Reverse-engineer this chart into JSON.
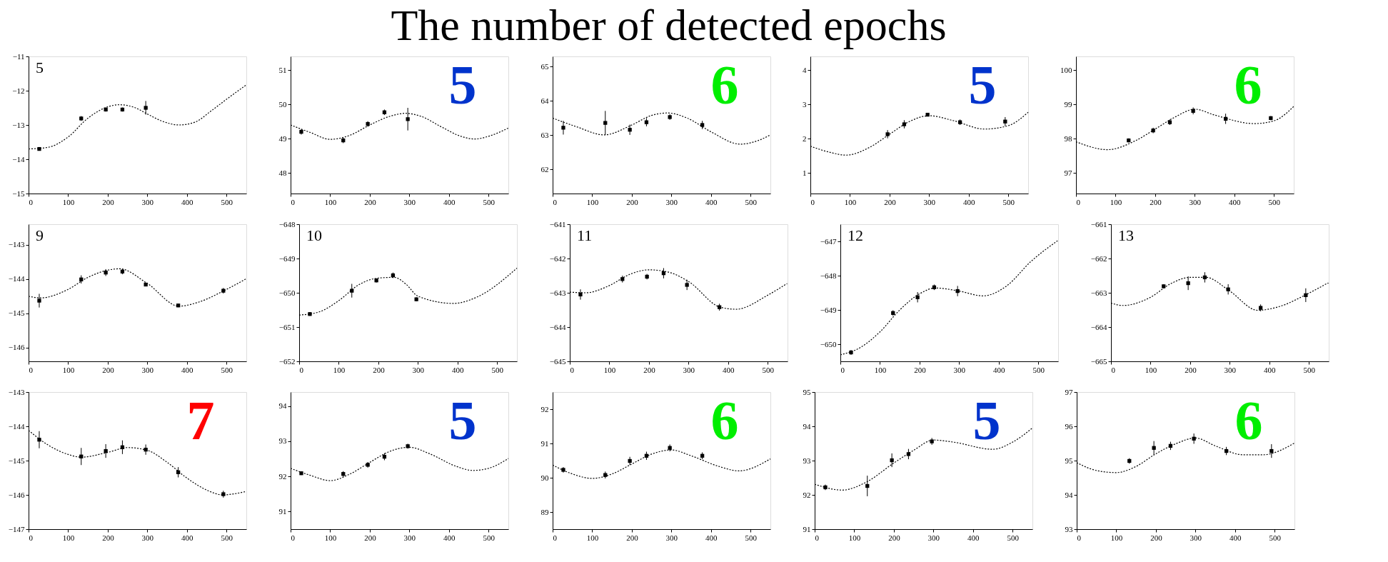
{
  "chart_data": [
    {
      "type": "scatter",
      "annotations": [
        "The number of detected epochs"
      ],
      "title": "5",
      "xlim": [
        0,
        550
      ],
      "xticks": [
        0,
        100,
        200,
        300,
        400,
        500
      ],
      "ylim": [
        -15,
        -11
      ],
      "yticks": [
        -15,
        -14,
        -13,
        -12,
        -11
      ],
      "grid": false,
      "series": [
        {
          "marker": "square",
          "color": "#000000",
          "x": [
            27,
            133,
            195,
            237,
            296
          ],
          "values": [
            -13.7,
            -12.81,
            -12.55,
            -12.55,
            -12.5
          ],
          "errors": [
            0.05,
            0.07,
            0.06,
            0.06,
            0.2
          ]
        },
        {
          "type": "line",
          "line_style": "dotted",
          "color": "#000000",
          "x": [
            0,
            50,
            100,
            150,
            200,
            230,
            270,
            300,
            340,
            380,
            420,
            460,
            500,
            550
          ],
          "values": [
            -13.7,
            -13.65,
            -13.35,
            -12.8,
            -12.47,
            -12.41,
            -12.5,
            -12.68,
            -12.9,
            -13.0,
            -12.92,
            -12.6,
            -12.25,
            -11.83
          ]
        }
      ]
    },
    {
      "type": "scatter",
      "annotations": [
        "5"
      ],
      "xlim": [
        0,
        550
      ],
      "xticks": [
        0,
        100,
        200,
        300,
        400,
        500
      ],
      "ylim": [
        47.4,
        51.4
      ],
      "yticks": [
        48,
        49,
        50,
        51
      ],
      "grid": false,
      "series": [
        {
          "marker": "square",
          "color": "#000000",
          "x": [
            27,
            133,
            195,
            237,
            296
          ],
          "values": [
            49.2,
            48.95,
            49.43,
            49.77,
            49.57
          ],
          "errors": [
            0.08,
            0.08,
            0.08,
            0.08,
            0.33
          ]
        },
        {
          "type": "line",
          "line_style": "dotted",
          "color": "#000000",
          "x": [
            0,
            50,
            100,
            150,
            200,
            250,
            290,
            330,
            380,
            430,
            465,
            500,
            550
          ],
          "values": [
            49.4,
            49.18,
            48.98,
            49.1,
            49.4,
            49.65,
            49.74,
            49.65,
            49.35,
            49.07,
            48.99,
            49.07,
            49.31
          ]
        }
      ]
    },
    {
      "type": "scatter",
      "annotations": [
        "6"
      ],
      "xlim": [
        0,
        550
      ],
      "xticks": [
        0,
        100,
        200,
        300,
        400,
        500
      ],
      "ylim": [
        61.3,
        65.3
      ],
      "yticks": [
        62,
        63,
        64,
        65
      ],
      "grid": false,
      "series": [
        {
          "marker": "square",
          "color": "#000000",
          "x": [
            27,
            133,
            195,
            237,
            296,
            378
          ],
          "values": [
            63.22,
            63.36,
            63.16,
            63.38,
            63.53,
            63.3
          ],
          "errors": [
            0.2,
            0.35,
            0.15,
            0.12,
            0.08,
            0.12
          ]
        },
        {
          "type": "line",
          "line_style": "dotted",
          "color": "#000000",
          "x": [
            0,
            60,
            130,
            200,
            250,
            290,
            340,
            400,
            474,
            520,
            550
          ],
          "values": [
            63.5,
            63.25,
            63.01,
            63.3,
            63.58,
            63.65,
            63.5,
            63.1,
            62.74,
            62.85,
            63.01
          ]
        }
      ]
    },
    {
      "type": "scatter",
      "annotations": [
        "5"
      ],
      "xlim": [
        0,
        550
      ],
      "xticks": [
        0,
        100,
        200,
        300,
        400,
        500
      ],
      "ylim": [
        0.4,
        4.4
      ],
      "yticks": [
        1,
        2,
        3,
        4
      ],
      "grid": false,
      "series": [
        {
          "marker": "square",
          "color": "#000000",
          "x": [
            195,
            237,
            296,
            378,
            492
          ],
          "values": [
            2.13,
            2.42,
            2.7,
            2.48,
            2.5
          ],
          "errors": [
            0.12,
            0.12,
            0.05,
            0.08,
            0.13
          ]
        },
        {
          "type": "line",
          "line_style": "dotted",
          "color": "#000000",
          "x": [
            0,
            50,
            90,
            150,
            200,
            250,
            300,
            360,
            440,
            500,
            550
          ],
          "values": [
            1.78,
            1.6,
            1.52,
            1.75,
            2.13,
            2.5,
            2.67,
            2.53,
            2.28,
            2.38,
            2.77
          ]
        }
      ]
    },
    {
      "type": "scatter",
      "annotations": [
        "6"
      ],
      "xlim": [
        0,
        550
      ],
      "xticks": [
        0,
        100,
        200,
        300,
        400,
        500
      ],
      "ylim": [
        96.4,
        100.4
      ],
      "yticks": [
        97,
        98,
        99,
        100
      ],
      "grid": false,
      "series": [
        {
          "marker": "square",
          "color": "#000000",
          "x": [
            133,
            195,
            237,
            296,
            378,
            492
          ],
          "values": [
            97.95,
            98.24,
            98.48,
            98.81,
            98.58,
            98.6
          ],
          "errors": [
            0.06,
            0.08,
            0.08,
            0.1,
            0.15,
            0.06
          ]
        },
        {
          "type": "line",
          "line_style": "dotted",
          "color": "#000000",
          "x": [
            0,
            80,
            150,
            200,
            250,
            300,
            350,
            450,
            500,
            550
          ],
          "values": [
            97.91,
            97.68,
            97.94,
            98.28,
            98.63,
            98.86,
            98.69,
            98.44,
            98.52,
            98.94
          ]
        }
      ]
    },
    {
      "type": "scatter",
      "title": "9",
      "xlim": [
        0,
        550
      ],
      "xticks": [
        0,
        100,
        200,
        300,
        400,
        500
      ],
      "ylim": [
        -146.4,
        -142.4
      ],
      "yticks": [
        -146,
        -145,
        -144,
        -143
      ],
      "grid": false,
      "series": [
        {
          "marker": "square",
          "color": "#000000",
          "x": [
            27,
            133,
            195,
            237,
            296,
            378,
            492
          ],
          "values": [
            -144.63,
            -144.01,
            -143.81,
            -143.78,
            -144.16,
            -144.77,
            -144.34
          ],
          "errors": [
            0.2,
            0.12,
            0.1,
            0.08,
            0.05,
            0.05,
            0.08
          ]
        },
        {
          "type": "line",
          "line_style": "dotted",
          "color": "#000000",
          "x": [
            0,
            30,
            100,
            150,
            200,
            230,
            300,
            380,
            430,
            500,
            550
          ],
          "values": [
            -144.5,
            -144.55,
            -144.3,
            -143.95,
            -143.74,
            -143.7,
            -144.13,
            -144.79,
            -144.67,
            -144.3,
            -143.99
          ]
        }
      ]
    },
    {
      "type": "scatter",
      "title": "10",
      "xlim": [
        0,
        550
      ],
      "xticks": [
        0,
        100,
        200,
        300,
        400,
        500
      ],
      "ylim": [
        -652,
        -648
      ],
      "yticks": [
        -652,
        -651,
        -650,
        -649,
        -648
      ],
      "grid": false,
      "series": [
        {
          "marker": "square",
          "color": "#000000",
          "x": [
            27,
            133,
            195,
            237,
            296
          ],
          "values": [
            -650.62,
            -649.94,
            -649.64,
            -649.49,
            -650.19
          ],
          "errors": [
            0.05,
            0.2,
            0.06,
            0.08,
            0.06
          ]
        },
        {
          "type": "line",
          "line_style": "dotted",
          "color": "#000000",
          "x": [
            0,
            50,
            100,
            150,
            200,
            240,
            270,
            300,
            390,
            450,
            550
          ],
          "values": [
            -650.65,
            -650.56,
            -650.23,
            -649.77,
            -649.57,
            -649.55,
            -649.75,
            -650.1,
            -650.31,
            -650.12,
            -649.28
          ]
        }
      ]
    },
    {
      "type": "scatter",
      "title": "11",
      "xlim": [
        0,
        550
      ],
      "xticks": [
        0,
        100,
        200,
        300,
        400,
        500
      ],
      "ylim": [
        -645,
        -641
      ],
      "yticks": [
        -645,
        -644,
        -643,
        -642,
        -641
      ],
      "grid": false,
      "series": [
        {
          "marker": "square",
          "color": "#000000",
          "x": [
            27,
            133,
            195,
            237,
            296,
            378
          ],
          "values": [
            -643.05,
            -642.6,
            -642.53,
            -642.43,
            -642.77,
            -643.42
          ],
          "errors": [
            0.15,
            0.1,
            0.08,
            0.15,
            0.15,
            0.1
          ]
        },
        {
          "type": "line",
          "line_style": "dotted",
          "color": "#000000",
          "x": [
            0,
            40,
            100,
            150,
            200,
            250,
            300,
            380,
            420,
            500,
            550
          ],
          "values": [
            -642.98,
            -643.0,
            -642.79,
            -642.47,
            -642.33,
            -642.4,
            -642.67,
            -643.42,
            -643.48,
            -643.07,
            -642.72
          ]
        }
      ]
    },
    {
      "type": "scatter",
      "title": "12",
      "xlim": [
        0,
        550
      ],
      "xticks": [
        0,
        100,
        200,
        300,
        400,
        500
      ],
      "ylim": [
        -650.5,
        -646.5
      ],
      "yticks": [
        -650,
        -649,
        -648,
        -647
      ],
      "grid": false,
      "series": [
        {
          "marker": "square",
          "color": "#000000",
          "x": [
            27,
            133,
            195,
            237,
            296
          ],
          "values": [
            -650.24,
            -649.09,
            -648.63,
            -648.34,
            -648.45
          ],
          "errors": [
            0.07,
            0.08,
            0.15,
            0.08,
            0.15
          ]
        },
        {
          "type": "line",
          "line_style": "dotted",
          "color": "#000000",
          "x": [
            0,
            50,
            100,
            150,
            200,
            240,
            300,
            360,
            420,
            480,
            550
          ],
          "values": [
            -650.31,
            -650.1,
            -649.64,
            -649.0,
            -648.53,
            -648.36,
            -648.45,
            -648.59,
            -648.3,
            -647.6,
            -646.97
          ]
        }
      ]
    },
    {
      "type": "scatter",
      "title": "13",
      "xlim": [
        0,
        550
      ],
      "xticks": [
        0,
        100,
        200,
        300,
        400,
        500
      ],
      "ylim": [
        -665,
        -661
      ],
      "yticks": [
        -665,
        -664,
        -663,
        -662,
        -661
      ],
      "grid": false,
      "series": [
        {
          "marker": "square",
          "color": "#000000",
          "x": [
            133,
            195,
            237,
            296,
            378,
            492
          ],
          "values": [
            -662.81,
            -662.72,
            -662.55,
            -662.9,
            -663.44,
            -663.07
          ],
          "errors": [
            0.06,
            0.2,
            0.15,
            0.15,
            0.1,
            0.2
          ]
        },
        {
          "type": "line",
          "line_style": "dotted",
          "color": "#000000",
          "x": [
            0,
            30,
            100,
            150,
            200,
            240,
            300,
            370,
            420,
            500,
            550
          ],
          "values": [
            -663.3,
            -663.37,
            -663.13,
            -662.74,
            -662.55,
            -662.55,
            -662.95,
            -663.51,
            -663.42,
            -663.01,
            -662.7
          ]
        }
      ]
    },
    {
      "type": "scatter",
      "annotations": [
        "7"
      ],
      "xlim": [
        0,
        550
      ],
      "xticks": [
        0,
        100,
        200,
        300,
        400,
        500
      ],
      "ylim": [
        -147,
        -143
      ],
      "yticks": [
        -147,
        -146,
        -145,
        -144,
        -143
      ],
      "grid": false,
      "series": [
        {
          "marker": "square",
          "color": "#000000",
          "x": [
            27,
            133,
            195,
            237,
            296,
            378,
            492
          ],
          "values": [
            -144.39,
            -144.88,
            -144.72,
            -144.61,
            -144.68,
            -145.34,
            -145.98
          ],
          "errors": [
            0.25,
            0.25,
            0.2,
            0.2,
            0.15,
            0.15,
            0.1
          ]
        },
        {
          "type": "line",
          "line_style": "dotted",
          "color": "#000000",
          "x": [
            0,
            50,
            100,
            133,
            200,
            250,
            300,
            350,
            400,
            450,
            490,
            550
          ],
          "values": [
            -144.12,
            -144.55,
            -144.82,
            -144.9,
            -144.76,
            -144.62,
            -144.7,
            -145.05,
            -145.51,
            -145.86,
            -146.0,
            -145.9
          ]
        }
      ]
    },
    {
      "type": "scatter",
      "annotations": [
        "5"
      ],
      "xlim": [
        0,
        550
      ],
      "xticks": [
        0,
        100,
        200,
        300,
        400,
        500
      ],
      "ylim": [
        90.5,
        94.4
      ],
      "yticks": [
        91,
        92,
        93,
        94
      ],
      "grid": false,
      "series": [
        {
          "marker": "square",
          "color": "#000000",
          "x": [
            27,
            133,
            195,
            237,
            296
          ],
          "values": [
            92.09,
            92.07,
            92.33,
            92.56,
            92.86
          ],
          "errors": [
            0.05,
            0.08,
            0.08,
            0.1,
            0.07
          ]
        },
        {
          "type": "line",
          "line_style": "dotted",
          "color": "#000000",
          "x": [
            0,
            50,
            100,
            150,
            200,
            250,
            300,
            350,
            420,
            460,
            500,
            550
          ],
          "values": [
            92.23,
            92.03,
            91.88,
            92.07,
            92.4,
            92.71,
            92.83,
            92.65,
            92.28,
            92.17,
            92.23,
            92.51
          ]
        }
      ]
    },
    {
      "type": "scatter",
      "annotations": [
        "6"
      ],
      "xlim": [
        0,
        550
      ],
      "xticks": [
        0,
        100,
        200,
        300,
        400,
        500
      ],
      "ylim": [
        88.5,
        92.5
      ],
      "yticks": [
        89,
        90,
        91,
        92
      ],
      "grid": false,
      "series": [
        {
          "marker": "square",
          "color": "#000000",
          "x": [
            27,
            133,
            195,
            237,
            296,
            378
          ],
          "values": [
            90.23,
            90.08,
            90.49,
            90.64,
            90.87,
            90.64
          ],
          "errors": [
            0.08,
            0.1,
            0.12,
            0.12,
            0.1,
            0.1
          ]
        },
        {
          "type": "line",
          "line_style": "dotted",
          "color": "#000000",
          "x": [
            0,
            50,
            100,
            150,
            200,
            250,
            300,
            350,
            420,
            470,
            550
          ],
          "values": [
            90.37,
            90.11,
            89.98,
            90.11,
            90.4,
            90.69,
            90.81,
            90.64,
            90.33,
            90.2,
            90.55
          ]
        }
      ]
    },
    {
      "type": "scatter",
      "annotations": [
        "5"
      ],
      "xlim": [
        0,
        550
      ],
      "xticks": [
        0,
        100,
        200,
        300,
        400,
        500
      ],
      "ylim": [
        91,
        95
      ],
      "yticks": [
        91,
        92,
        93,
        94,
        95
      ],
      "grid": false,
      "series": [
        {
          "marker": "square",
          "color": "#000000",
          "x": [
            27,
            133,
            195,
            237,
            296
          ],
          "values": [
            92.22,
            92.26,
            93.01,
            93.19,
            93.56
          ],
          "errors": [
            0.08,
            0.3,
            0.2,
            0.15,
            0.1
          ]
        },
        {
          "type": "line",
          "line_style": "dotted",
          "color": "#000000",
          "x": [
            0,
            70,
            130,
            200,
            250,
            300,
            350,
            450,
            500,
            550
          ],
          "values": [
            92.31,
            92.14,
            92.37,
            92.93,
            93.3,
            93.6,
            93.54,
            93.33,
            93.54,
            93.95
          ]
        }
      ]
    },
    {
      "type": "scatter",
      "annotations": [
        "6"
      ],
      "xlim": [
        0,
        550
      ],
      "xticks": [
        0,
        100,
        200,
        300,
        400,
        500
      ],
      "ylim": [
        93,
        97
      ],
      "yticks": [
        93,
        94,
        95,
        96,
        97
      ],
      "grid": false,
      "series": [
        {
          "marker": "square",
          "color": "#000000",
          "x": [
            133,
            195,
            237,
            296,
            378,
            492
          ],
          "values": [
            94.99,
            95.37,
            95.43,
            95.64,
            95.28,
            95.28
          ],
          "errors": [
            0.08,
            0.2,
            0.12,
            0.15,
            0.12,
            0.2
          ]
        },
        {
          "type": "line",
          "line_style": "dotted",
          "color": "#000000",
          "x": [
            0,
            50,
            100,
            150,
            200,
            250,
            300,
            350,
            420,
            470,
            550
          ],
          "values": [
            94.94,
            94.71,
            94.65,
            94.83,
            95.2,
            95.49,
            95.66,
            95.43,
            95.17,
            95.17,
            95.51
          ]
        }
      ]
    }
  ]
}
